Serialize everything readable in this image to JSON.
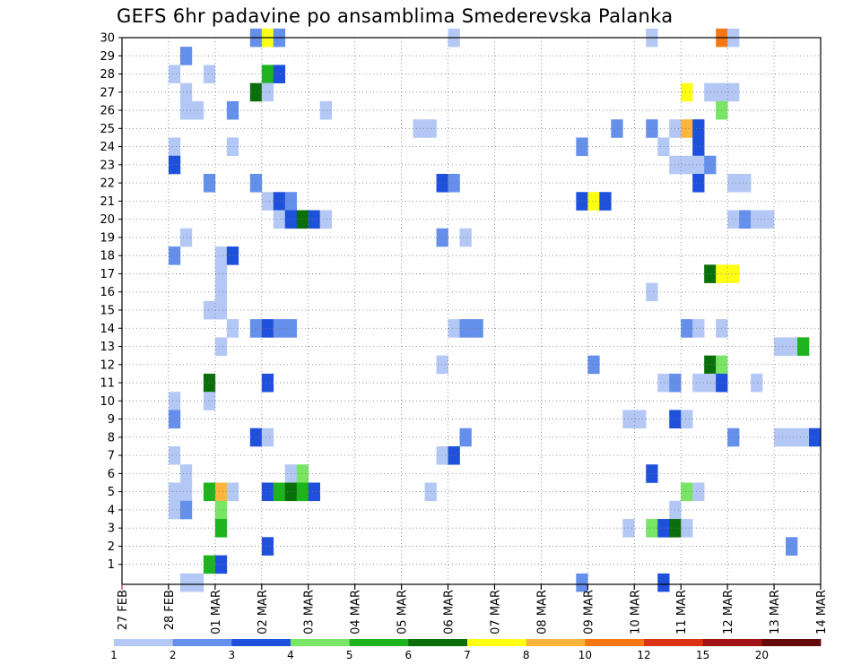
{
  "chart_data": {
    "type": "heatmap",
    "title": "GEFS 6hr padavine po ansamblima Smederevska Palanka",
    "xlabel": "",
    "ylabel": "",
    "x_ticks": [
      "27 FEB",
      "28 FEB",
      "01 MAR",
      "02 MAR",
      "03 MAR",
      "04 MAR",
      "05 MAR",
      "06 MAR",
      "07 MAR",
      "08 MAR",
      "09 MAR",
      "10 MAR",
      "11 MAR",
      "12 MAR",
      "13 MAR",
      "14 MAR"
    ],
    "y_ticks": [
      "1",
      "2",
      "3",
      "4",
      "5",
      "6",
      "7",
      "8",
      "9",
      "10",
      "11",
      "12",
      "13",
      "14",
      "15",
      "16",
      "17",
      "18",
      "19",
      "20",
      "21",
      "22",
      "23",
      "24",
      "25",
      "26",
      "27",
      "28",
      "29",
      "30"
    ],
    "x_range_steps": [
      0,
      60
    ],
    "y_range": [
      0,
      30
    ],
    "grid": true,
    "colorbar": {
      "labels": [
        "1",
        "2",
        "3",
        "4",
        "5",
        "6",
        "7",
        "8",
        "10",
        "12",
        "15",
        "20"
      ],
      "colors": [
        "#b4c8f5",
        "#6490eb",
        "#1e50dc",
        "#78e664",
        "#1eb41e",
        "#0a6e0a",
        "#ffff14",
        "#ffb43c",
        "#f57814",
        "#dc3214",
        "#a01414",
        "#640a0a"
      ]
    },
    "cells": [
      {
        "x": 11,
        "y": 30,
        "c": 2
      },
      {
        "x": 12,
        "y": 30,
        "c": 7
      },
      {
        "x": 13,
        "y": 30,
        "c": 2
      },
      {
        "x": 28,
        "y": 30,
        "c": 1
      },
      {
        "x": 45,
        "y": 30,
        "c": 1
      },
      {
        "x": 51,
        "y": 30,
        "c": 9
      },
      {
        "x": 52,
        "y": 30,
        "c": 1
      },
      {
        "x": 5,
        "y": 29,
        "c": 2
      },
      {
        "x": 4,
        "y": 28,
        "c": 1
      },
      {
        "x": 7,
        "y": 28,
        "c": 1
      },
      {
        "x": 12,
        "y": 28,
        "c": 5
      },
      {
        "x": 13,
        "y": 28,
        "c": 3
      },
      {
        "x": 5,
        "y": 27,
        "c": 1
      },
      {
        "x": 11,
        "y": 27,
        "c": 6
      },
      {
        "x": 12,
        "y": 27,
        "c": 1
      },
      {
        "x": 48,
        "y": 27,
        "c": 7
      },
      {
        "x": 50,
        "y": 27,
        "c": 1
      },
      {
        "x": 51,
        "y": 27,
        "c": 1
      },
      {
        "x": 52,
        "y": 27,
        "c": 1
      },
      {
        "x": 5,
        "y": 26,
        "c": 1
      },
      {
        "x": 6,
        "y": 26,
        "c": 1
      },
      {
        "x": 9,
        "y": 26,
        "c": 2
      },
      {
        "x": 17,
        "y": 26,
        "c": 1
      },
      {
        "x": 51,
        "y": 26,
        "c": 4
      },
      {
        "x": 25,
        "y": 25,
        "c": 1
      },
      {
        "x": 26,
        "y": 25,
        "c": 1
      },
      {
        "x": 42,
        "y": 25,
        "c": 2
      },
      {
        "x": 45,
        "y": 25,
        "c": 2
      },
      {
        "x": 47,
        "y": 25,
        "c": 1
      },
      {
        "x": 48,
        "y": 25,
        "c": 8
      },
      {
        "x": 49,
        "y": 25,
        "c": 3
      },
      {
        "x": 4,
        "y": 24,
        "c": 1
      },
      {
        "x": 9,
        "y": 24,
        "c": 1
      },
      {
        "x": 39,
        "y": 24,
        "c": 2
      },
      {
        "x": 46,
        "y": 24,
        "c": 1
      },
      {
        "x": 49,
        "y": 24,
        "c": 3
      },
      {
        "x": 4,
        "y": 23,
        "c": 3
      },
      {
        "x": 47,
        "y": 23,
        "c": 1
      },
      {
        "x": 48,
        "y": 23,
        "c": 1
      },
      {
        "x": 49,
        "y": 23,
        "c": 1
      },
      {
        "x": 50,
        "y": 23,
        "c": 2
      },
      {
        "x": 7,
        "y": 22,
        "c": 2
      },
      {
        "x": 11,
        "y": 22,
        "c": 2
      },
      {
        "x": 27,
        "y": 22,
        "c": 3
      },
      {
        "x": 28,
        "y": 22,
        "c": 2
      },
      {
        "x": 49,
        "y": 22,
        "c": 3
      },
      {
        "x": 52,
        "y": 22,
        "c": 1
      },
      {
        "x": 53,
        "y": 22,
        "c": 1
      },
      {
        "x": 12,
        "y": 21,
        "c": 1
      },
      {
        "x": 13,
        "y": 21,
        "c": 3
      },
      {
        "x": 14,
        "y": 21,
        "c": 2
      },
      {
        "x": 39,
        "y": 21,
        "c": 3
      },
      {
        "x": 40,
        "y": 21,
        "c": 7
      },
      {
        "x": 41,
        "y": 21,
        "c": 3
      },
      {
        "x": 13,
        "y": 20,
        "c": 1
      },
      {
        "x": 14,
        "y": 20,
        "c": 3
      },
      {
        "x": 15,
        "y": 20,
        "c": 6
      },
      {
        "x": 16,
        "y": 20,
        "c": 3
      },
      {
        "x": 17,
        "y": 20,
        "c": 1
      },
      {
        "x": 52,
        "y": 20,
        "c": 1
      },
      {
        "x": 53,
        "y": 20,
        "c": 2
      },
      {
        "x": 54,
        "y": 20,
        "c": 1
      },
      {
        "x": 55,
        "y": 20,
        "c": 1
      },
      {
        "x": 5,
        "y": 19,
        "c": 1
      },
      {
        "x": 27,
        "y": 19,
        "c": 2
      },
      {
        "x": 29,
        "y": 19,
        "c": 1
      },
      {
        "x": 4,
        "y": 18,
        "c": 2
      },
      {
        "x": 8,
        "y": 18,
        "c": 1
      },
      {
        "x": 9,
        "y": 18,
        "c": 3
      },
      {
        "x": 8,
        "y": 17,
        "c": 1
      },
      {
        "x": 50,
        "y": 17,
        "c": 6
      },
      {
        "x": 51,
        "y": 17,
        "c": 7
      },
      {
        "x": 52,
        "y": 17,
        "c": 7
      },
      {
        "x": 8,
        "y": 16,
        "c": 1
      },
      {
        "x": 45,
        "y": 16,
        "c": 1
      },
      {
        "x": 7,
        "y": 15,
        "c": 1
      },
      {
        "x": 8,
        "y": 15,
        "c": 1
      },
      {
        "x": 9,
        "y": 14,
        "c": 1
      },
      {
        "x": 11,
        "y": 14,
        "c": 2
      },
      {
        "x": 12,
        "y": 14,
        "c": 3
      },
      {
        "x": 13,
        "y": 14,
        "c": 2
      },
      {
        "x": 14,
        "y": 14,
        "c": 2
      },
      {
        "x": 28,
        "y": 14,
        "c": 1
      },
      {
        "x": 29,
        "y": 14,
        "c": 2
      },
      {
        "x": 30,
        "y": 14,
        "c": 2
      },
      {
        "x": 48,
        "y": 14,
        "c": 2
      },
      {
        "x": 49,
        "y": 14,
        "c": 1
      },
      {
        "x": 51,
        "y": 14,
        "c": 1
      },
      {
        "x": 8,
        "y": 13,
        "c": 1
      },
      {
        "x": 56,
        "y": 13,
        "c": 1
      },
      {
        "x": 57,
        "y": 13,
        "c": 1
      },
      {
        "x": 58,
        "y": 13,
        "c": 5
      },
      {
        "x": 27,
        "y": 12,
        "c": 1
      },
      {
        "x": 40,
        "y": 12,
        "c": 2
      },
      {
        "x": 50,
        "y": 12,
        "c": 6
      },
      {
        "x": 51,
        "y": 12,
        "c": 4
      },
      {
        "x": 7,
        "y": 11,
        "c": 6
      },
      {
        "x": 12,
        "y": 11,
        "c": 3
      },
      {
        "x": 46,
        "y": 11,
        "c": 1
      },
      {
        "x": 47,
        "y": 11,
        "c": 2
      },
      {
        "x": 49,
        "y": 11,
        "c": 1
      },
      {
        "x": 50,
        "y": 11,
        "c": 1
      },
      {
        "x": 51,
        "y": 11,
        "c": 3
      },
      {
        "x": 54,
        "y": 11,
        "c": 1
      },
      {
        "x": 4,
        "y": 10,
        "c": 1
      },
      {
        "x": 7,
        "y": 10,
        "c": 1
      },
      {
        "x": 4,
        "y": 9,
        "c": 2
      },
      {
        "x": 43,
        "y": 9,
        "c": 1
      },
      {
        "x": 44,
        "y": 9,
        "c": 1
      },
      {
        "x": 47,
        "y": 9,
        "c": 3
      },
      {
        "x": 48,
        "y": 9,
        "c": 1
      },
      {
        "x": 11,
        "y": 8,
        "c": 3
      },
      {
        "x": 12,
        "y": 8,
        "c": 1
      },
      {
        "x": 29,
        "y": 8,
        "c": 2
      },
      {
        "x": 52,
        "y": 8,
        "c": 2
      },
      {
        "x": 56,
        "y": 8,
        "c": 1
      },
      {
        "x": 57,
        "y": 8,
        "c": 1
      },
      {
        "x": 58,
        "y": 8,
        "c": 1
      },
      {
        "x": 59,
        "y": 8,
        "c": 3
      },
      {
        "x": 4,
        "y": 7,
        "c": 1
      },
      {
        "x": 27,
        "y": 7,
        "c": 1
      },
      {
        "x": 28,
        "y": 7,
        "c": 3
      },
      {
        "x": 5,
        "y": 6,
        "c": 1
      },
      {
        "x": 14,
        "y": 6,
        "c": 1
      },
      {
        "x": 15,
        "y": 6,
        "c": 4
      },
      {
        "x": 45,
        "y": 6,
        "c": 3
      },
      {
        "x": 4,
        "y": 5,
        "c": 1
      },
      {
        "x": 5,
        "y": 5,
        "c": 1
      },
      {
        "x": 7,
        "y": 5,
        "c": 5
      },
      {
        "x": 8,
        "y": 5,
        "c": 8
      },
      {
        "x": 9,
        "y": 5,
        "c": 1
      },
      {
        "x": 12,
        "y": 5,
        "c": 3
      },
      {
        "x": 13,
        "y": 5,
        "c": 5
      },
      {
        "x": 14,
        "y": 5,
        "c": 6
      },
      {
        "x": 15,
        "y": 5,
        "c": 5
      },
      {
        "x": 16,
        "y": 5,
        "c": 3
      },
      {
        "x": 26,
        "y": 5,
        "c": 1
      },
      {
        "x": 48,
        "y": 5,
        "c": 4
      },
      {
        "x": 49,
        "y": 5,
        "c": 1
      },
      {
        "x": 4,
        "y": 4,
        "c": 1
      },
      {
        "x": 5,
        "y": 4,
        "c": 2
      },
      {
        "x": 8,
        "y": 4,
        "c": 4
      },
      {
        "x": 47,
        "y": 4,
        "c": 1
      },
      {
        "x": 8,
        "y": 3,
        "c": 5
      },
      {
        "x": 43,
        "y": 3,
        "c": 1
      },
      {
        "x": 45,
        "y": 3,
        "c": 4
      },
      {
        "x": 46,
        "y": 3,
        "c": 3
      },
      {
        "x": 47,
        "y": 3,
        "c": 6
      },
      {
        "x": 48,
        "y": 3,
        "c": 1
      },
      {
        "x": 12,
        "y": 2,
        "c": 3
      },
      {
        "x": 57,
        "y": 2,
        "c": 2
      },
      {
        "x": 7,
        "y": 1,
        "c": 5
      },
      {
        "x": 8,
        "y": 1,
        "c": 3
      },
      {
        "x": 5,
        "y": 0,
        "c": 1
      },
      {
        "x": 6,
        "y": 0,
        "c": 1
      },
      {
        "x": 39,
        "y": 0,
        "c": 2
      },
      {
        "x": 46,
        "y": 0,
        "c": 3
      }
    ]
  }
}
